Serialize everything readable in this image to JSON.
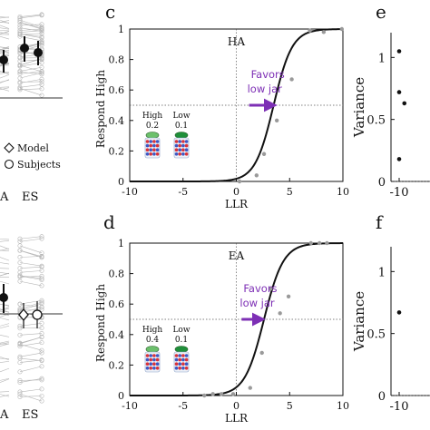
{
  "colors": {
    "purple": "#7d2fb5",
    "curve": "#111111",
    "points": "#9a9a9a",
    "guide": "#555555",
    "subjects_cloud": "#b5b5b5",
    "jar_high_lid": "#6cc06c",
    "jar_low_lid": "#1f8f3a",
    "jar_red": "#d9323a",
    "jar_blue": "#3d57c4"
  },
  "icons": [
    "jar-high-icon",
    "jar-low-icon",
    "diamond-icon",
    "circle-icon"
  ],
  "partial_left": {
    "top_x_labels": [
      "A",
      "ES"
    ],
    "bottom_x_labels": [
      "A",
      "ES"
    ],
    "legend": {
      "model": "Model",
      "subjects": "Subjects"
    }
  },
  "chart_data": [
    {
      "panel": "c",
      "type": "line",
      "title": "HA",
      "xlabel": "LLR",
      "ylabel": "Respond High",
      "xlim": [
        -10,
        10
      ],
      "ylim": [
        0,
        1
      ],
      "xticks": [
        "-10",
        "-5",
        "0",
        "5",
        "10"
      ],
      "yticks": [
        "0",
        "0.2",
        "0.4",
        "0.6",
        "0.8",
        "1"
      ],
      "curve": {
        "x0": 3.5,
        "slope": 1.15
      },
      "points": {
        "x": [
          0.3,
          1.9,
          2.6,
          3.8,
          5.2,
          6.9,
          8.2,
          9.9
        ],
        "y": [
          0.0,
          0.04,
          0.18,
          0.4,
          0.67,
          0.99,
          0.98,
          1.0
        ]
      },
      "reference_y": 0.5,
      "annotation": {
        "line1": "Favors",
        "line2": "low jar",
        "arrow_from_x": 1.2,
        "arrow_to_x": 3.6
      },
      "jars": [
        {
          "label": "High",
          "value": "0.2"
        },
        {
          "label": "Low",
          "value": "0.1"
        }
      ],
      "grid": false
    },
    {
      "panel": "d",
      "type": "line",
      "title": "EA",
      "xlabel": "LLR",
      "ylabel": "Respond High",
      "xlim": [
        -10,
        10
      ],
      "ylim": [
        0,
        1
      ],
      "xticks": [
        "-10",
        "-5",
        "0",
        "5",
        "10"
      ],
      "yticks": [
        "0",
        "0.2",
        "0.4",
        "0.6",
        "0.8",
        "1"
      ],
      "curve": {
        "x0": 2.6,
        "slope": 1.1
      },
      "points": {
        "x": [
          -3.0,
          -2.2,
          -1.4,
          -0.3,
          1.3,
          2.4,
          3.2,
          4.1,
          4.9,
          7.0,
          7.8,
          8.5
        ],
        "y": [
          0.0,
          0.01,
          0.01,
          0.01,
          0.05,
          0.28,
          0.7,
          0.54,
          0.65,
          1.0,
          1.0,
          1.0
        ]
      },
      "reference_y": 0.5,
      "annotation": {
        "line1": "Favors",
        "line2": "low jar",
        "arrow_from_x": 0.5,
        "arrow_to_x": 2.5
      },
      "jars": [
        {
          "label": "High",
          "value": "0.4"
        },
        {
          "label": "Low",
          "value": "0.1"
        }
      ],
      "grid": false
    },
    {
      "panel": "e",
      "type": "scatter",
      "ylabel": "Variance",
      "xticks": [
        "-10"
      ],
      "yticks": [
        "0",
        "0.5",
        "1"
      ],
      "ylim": [
        0,
        1.2
      ],
      "points": {
        "x": [
          -10.0,
          -10.0,
          -10.0,
          -9.2
        ],
        "y": [
          1.05,
          0.72,
          0.18,
          0.63
        ]
      }
    },
    {
      "panel": "f",
      "type": "scatter",
      "ylabel": "Variance",
      "xticks": [
        "-10"
      ],
      "yticks": [
        "0",
        "0.5",
        "1"
      ],
      "ylim": [
        0,
        1.2
      ],
      "points": {
        "x": [
          -10.0
        ],
        "y": [
          0.67
        ]
      }
    }
  ]
}
